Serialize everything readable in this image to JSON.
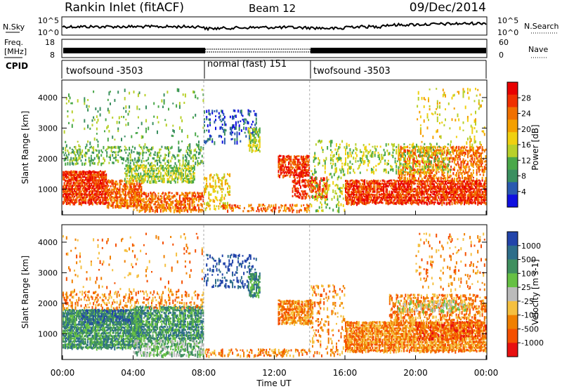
{
  "header": {
    "title": "Rankin Inlet (fitACF)",
    "beam": "Beam 12",
    "date": "09/Dec/2014"
  },
  "noise_panel": {
    "left_label": "N.Sky",
    "right_label": "N.Search",
    "left_ticks": [
      "10^5",
      "10^0"
    ],
    "right_ticks": [
      "10^5",
      "10^0"
    ]
  },
  "freq_panel": {
    "left_label_1": "Freq.",
    "left_label_2": "[MHz]",
    "right_label": "Nave",
    "left_ticks": [
      "18",
      "8"
    ],
    "right_ticks": [
      "60",
      "0"
    ]
  },
  "cpid": {
    "label": "CPID",
    "segments": [
      {
        "name": "twofsound -3503",
        "start": 0,
        "end": 8
      },
      {
        "name": "normal (fast) 151",
        "start": 8,
        "end": 14
      },
      {
        "name": "twofsound -3503",
        "start": 14,
        "end": 24
      }
    ]
  },
  "colors": {
    "power": [
      "#1010e0",
      "#2a5ab0",
      "#3a8f60",
      "#4aa84a",
      "#b8d02a",
      "#f0d010",
      "#f5a000",
      "#f07000",
      "#f03000",
      "#e80000"
    ],
    "velocity": [
      "#2244aa",
      "#2e6e8a",
      "#3f8f5f",
      "#66c044",
      "#bbbbbb",
      "#f5c040",
      "#f08000",
      "#f55000",
      "#e81010"
    ]
  },
  "chart_data": [
    {
      "type": "heatmap",
      "panel": "power",
      "ylabel": "Slant Range [km]",
      "yticks": [
        1000,
        2000,
        3000,
        4000
      ],
      "ylim": [
        180,
        4550
      ],
      "xlim": [
        0,
        24
      ],
      "colorbar": {
        "label": "Power [dB]",
        "ticks": [
          "4",
          "8",
          "12",
          "16",
          "20",
          "24",
          "28"
        ],
        "range": [
          0,
          30
        ]
      },
      "blobs": [
        {
          "t0": 0.0,
          "t1": 2.5,
          "r0": 500,
          "r1": 1600,
          "level": 8,
          "density": 0.95
        },
        {
          "t0": 2.5,
          "t1": 4.5,
          "r0": 400,
          "r1": 1300,
          "level": 7,
          "density": 0.8
        },
        {
          "t0": 3.5,
          "t1": 7.5,
          "r0": 1200,
          "r1": 1800,
          "level": 4,
          "density": 0.7
        },
        {
          "t0": 4.0,
          "t1": 8.0,
          "r0": 250,
          "r1": 900,
          "level": 7,
          "density": 0.7
        },
        {
          "t0": 0.0,
          "t1": 8.0,
          "r0": 1800,
          "r1": 2400,
          "level": 3,
          "density": 0.35
        },
        {
          "t0": 0.0,
          "t1": 8.0,
          "r0": 2400,
          "r1": 4300,
          "level": 3,
          "density": 0.05
        },
        {
          "t0": 8.0,
          "t1": 9.5,
          "r0": 300,
          "r1": 1500,
          "level": 5,
          "density": 0.35
        },
        {
          "t0": 8.0,
          "t1": 11.0,
          "r0": 2500,
          "r1": 3600,
          "level": 1,
          "density": 0.25
        },
        {
          "t0": 10.5,
          "t1": 11.2,
          "r0": 2200,
          "r1": 3000,
          "level": 4,
          "density": 0.7
        },
        {
          "t0": 9.0,
          "t1": 14.0,
          "r0": 250,
          "r1": 500,
          "level": 7,
          "density": 0.45
        },
        {
          "t0": 12.2,
          "t1": 14.0,
          "r0": 1400,
          "r1": 2100,
          "level": 8,
          "density": 0.85
        },
        {
          "t0": 13.0,
          "t1": 15.0,
          "r0": 700,
          "r1": 1400,
          "level": 8,
          "density": 0.55
        },
        {
          "t0": 14.0,
          "t1": 16.0,
          "r0": 250,
          "r1": 2600,
          "level": 4,
          "density": 0.2
        },
        {
          "t0": 16.0,
          "t1": 24.0,
          "r0": 500,
          "r1": 1300,
          "level": 8,
          "density": 0.9
        },
        {
          "t0": 19.0,
          "t1": 24.0,
          "r0": 1300,
          "r1": 2400,
          "level": 7,
          "density": 0.55
        },
        {
          "t0": 16.0,
          "t1": 22.0,
          "r0": 1500,
          "r1": 2500,
          "level": 4,
          "density": 0.3
        },
        {
          "t0": 20.0,
          "t1": 24.0,
          "r0": 2400,
          "r1": 4300,
          "level": 5,
          "density": 0.1
        }
      ]
    },
    {
      "type": "heatmap",
      "panel": "velocity",
      "ylabel": "Slant Range [km]",
      "xlabel": "Time UT",
      "yticks": [
        1000,
        2000,
        3000,
        4000
      ],
      "ylim": [
        180,
        4550
      ],
      "xlim": [
        0,
        24
      ],
      "xticks": [
        "00:00",
        "04:00",
        "08:00",
        "12:00",
        "16:00",
        "20:00",
        "00:00"
      ],
      "colorbar": {
        "label": "Velocity [m s-1]",
        "ticks": [
          "1000",
          "500",
          "100",
          "25",
          "-25",
          "-100",
          "-500",
          "-1000"
        ],
        "range": [
          -1000,
          1000
        ]
      },
      "blobs": [
        {
          "t0": 0.0,
          "t1": 4.5,
          "r0": 500,
          "r1": 1800,
          "level": 2,
          "density": 0.95
        },
        {
          "t0": 4.0,
          "t1": 8.0,
          "r0": 800,
          "r1": 1900,
          "level": 2,
          "density": 0.8
        },
        {
          "t0": 1.0,
          "t1": 4.0,
          "r0": 1300,
          "r1": 1800,
          "level": 1,
          "density": 0.6
        },
        {
          "t0": 4.0,
          "t1": 8.0,
          "r0": 250,
          "r1": 800,
          "level": 3,
          "density": 0.6
        },
        {
          "t0": 0.0,
          "t1": 8.0,
          "r0": 1800,
          "r1": 2400,
          "level": 6,
          "density": 0.3
        },
        {
          "t0": 0.0,
          "t1": 8.0,
          "r0": 2400,
          "r1": 4300,
          "level": 6,
          "density": 0.05
        },
        {
          "t0": 8.0,
          "t1": 11.0,
          "r0": 2500,
          "r1": 3600,
          "level": 0,
          "density": 0.25
        },
        {
          "t0": 10.5,
          "t1": 11.2,
          "r0": 2200,
          "r1": 3000,
          "level": 2,
          "density": 0.7
        },
        {
          "t0": 8.0,
          "t1": 14.0,
          "r0": 250,
          "r1": 500,
          "level": 6,
          "density": 0.4
        },
        {
          "t0": 12.2,
          "t1": 14.2,
          "r0": 1300,
          "r1": 2100,
          "level": 6,
          "density": 0.9
        },
        {
          "t0": 14.0,
          "t1": 16.0,
          "r0": 250,
          "r1": 2600,
          "level": 6,
          "density": 0.2
        },
        {
          "t0": 16.0,
          "t1": 24.0,
          "r0": 400,
          "r1": 1400,
          "level": 6,
          "density": 0.9
        },
        {
          "t0": 18.5,
          "t1": 24.0,
          "r0": 1300,
          "r1": 2300,
          "level": 6,
          "density": 0.5
        },
        {
          "t0": 19.0,
          "t1": 23.0,
          "r0": 1700,
          "r1": 2100,
          "level": 4,
          "density": 0.4
        },
        {
          "t0": 20.0,
          "t1": 24.0,
          "r0": 800,
          "r1": 1400,
          "level": 7,
          "density": 0.45
        },
        {
          "t0": 20.0,
          "t1": 24.0,
          "r0": 2400,
          "r1": 4300,
          "level": 6,
          "density": 0.1
        }
      ]
    }
  ]
}
